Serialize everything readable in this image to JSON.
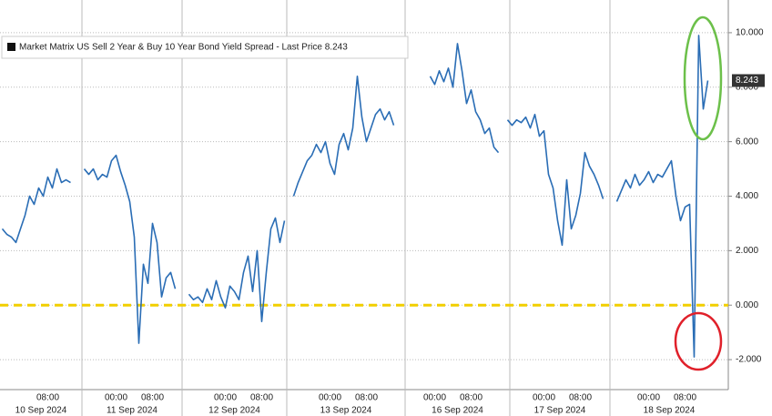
{
  "chart_data": {
    "type": "line",
    "series": [
      {
        "name": "Market Matrix US Sell 2 Year & Buy 10 Year Bond Yield Spread - Last Price 8.243",
        "color": "#2a6db5",
        "values": [
          2.8,
          2.6,
          2.5,
          2.3,
          2.8,
          3.3,
          4.0,
          3.7,
          4.3,
          4.0,
          4.7,
          4.3,
          5.0,
          4.5,
          4.6,
          4.5,
          null,
          null,
          5.0,
          4.8,
          5.0,
          4.6,
          4.8,
          4.7,
          5.3,
          5.5,
          4.9,
          4.4,
          3.8,
          2.5,
          -1.4,
          1.5,
          0.8,
          3.0,
          2.3,
          0.3,
          1.0,
          1.2,
          0.6,
          null,
          null,
          0.4,
          0.2,
          0.3,
          0.1,
          0.6,
          0.2,
          0.9,
          0.3,
          -0.1,
          0.7,
          0.5,
          0.2,
          1.2,
          1.8,
          0.5,
          2.0,
          -0.6,
          1.2,
          2.8,
          3.2,
          2.3,
          3.1,
          null,
          4.0,
          4.5,
          4.9,
          5.3,
          5.5,
          5.9,
          5.6,
          6.0,
          5.2,
          4.8,
          5.9,
          6.3,
          5.7,
          6.5,
          8.4,
          6.9,
          6.0,
          6.5,
          7.0,
          7.2,
          6.8,
          7.1,
          6.6,
          null,
          null,
          null,
          null,
          null,
          null,
          null,
          8.4,
          8.1,
          8.6,
          8.2,
          8.7,
          8.0,
          9.6,
          8.6,
          7.4,
          7.9,
          7.1,
          6.8,
          6.3,
          6.5,
          5.8,
          5.6,
          null,
          6.8,
          6.6,
          6.8,
          6.7,
          6.9,
          6.5,
          7.0,
          6.2,
          6.4,
          4.8,
          4.3,
          3.1,
          2.2,
          4.6,
          2.8,
          3.3,
          4.1,
          5.6,
          5.1,
          4.8,
          4.4,
          3.9,
          null,
          null,
          3.8,
          4.2,
          4.6,
          4.3,
          4.8,
          4.4,
          4.6,
          4.9,
          4.5,
          4.8,
          4.7,
          5.0,
          5.3,
          4.0,
          3.1,
          3.6,
          3.7,
          -1.9,
          9.9,
          7.2,
          8.243,
          null,
          null,
          null,
          null
        ]
      }
    ],
    "categories": [
      null,
      null,
      null,
      null,
      null,
      null,
      null,
      null,
      null,
      null,
      "08:00",
      null,
      null,
      null,
      null,
      null,
      null,
      null,
      null,
      null,
      null,
      null,
      null,
      null,
      null,
      "00:00",
      null,
      null,
      null,
      null,
      null,
      null,
      null,
      "08:00",
      null,
      null,
      null,
      null,
      null,
      null,
      null,
      null,
      null,
      null,
      null,
      null,
      null,
      null,
      null,
      "00:00",
      null,
      null,
      null,
      null,
      null,
      null,
      null,
      "08:00",
      null,
      null,
      null,
      null,
      null,
      null,
      null,
      null,
      null,
      null,
      null,
      null,
      null,
      null,
      "00:00",
      null,
      null,
      null,
      null,
      null,
      null,
      null,
      "08:00",
      null,
      null,
      null,
      null,
      null,
      null,
      null,
      null,
      null,
      null,
      null,
      null,
      null,
      null,
      "00:00",
      null,
      null,
      null,
      null,
      null,
      null,
      null,
      "08:00",
      null,
      null,
      null,
      null,
      null,
      null,
      null,
      null,
      null,
      null,
      null,
      null,
      null,
      null,
      null,
      "00:00",
      null,
      null,
      null,
      null,
      null,
      null,
      null,
      "08:00",
      null,
      null,
      null,
      null,
      null,
      null,
      null,
      null,
      null,
      null,
      null,
      null,
      null,
      null,
      "00:00",
      null,
      null,
      null,
      null,
      null,
      null,
      null,
      "08:00",
      null,
      null,
      null,
      null,
      null,
      null,
      null,
      null,
      null
    ],
    "dates": [
      "10 Sep 2024",
      "10 Sep 2024",
      "10 Sep 2024",
      "10 Sep 2024",
      "10 Sep 2024",
      "10 Sep 2024",
      "10 Sep 2024",
      "10 Sep 2024",
      "10 Sep 2024",
      "10 Sep 2024",
      "10 Sep 2024",
      "10 Sep 2024",
      "10 Sep 2024",
      "10 Sep 2024",
      "10 Sep 2024",
      "10 Sep 2024",
      "10 Sep 2024",
      "10 Sep 2024",
      "11 Sep 2024",
      "11 Sep 2024",
      "11 Sep 2024",
      "11 Sep 2024",
      "11 Sep 2024",
      "11 Sep 2024",
      "11 Sep 2024",
      "11 Sep 2024",
      "11 Sep 2024",
      "11 Sep 2024",
      "11 Sep 2024",
      "11 Sep 2024",
      "11 Sep 2024",
      "11 Sep 2024",
      "11 Sep 2024",
      "11 Sep 2024",
      "11 Sep 2024",
      "11 Sep 2024",
      "11 Sep 2024",
      "11 Sep 2024",
      "11 Sep 2024",
      "11 Sep 2024",
      "12 Sep 2024",
      "12 Sep 2024",
      "12 Sep 2024",
      "12 Sep 2024",
      "12 Sep 2024",
      "12 Sep 2024",
      "12 Sep 2024",
      "12 Sep 2024",
      "12 Sep 2024",
      "12 Sep 2024",
      "12 Sep 2024",
      "12 Sep 2024",
      "12 Sep 2024",
      "12 Sep 2024",
      "12 Sep 2024",
      "12 Sep 2024",
      "12 Sep 2024",
      "12 Sep 2024",
      "12 Sep 2024",
      "12 Sep 2024",
      "12 Sep 2024",
      "12 Sep 2024",
      "12 Sep 2024",
      "13 Sep 2024",
      "13 Sep 2024",
      "13 Sep 2024",
      "13 Sep 2024",
      "13 Sep 2024",
      "13 Sep 2024",
      "13 Sep 2024",
      "13 Sep 2024",
      "13 Sep 2024",
      "13 Sep 2024",
      "13 Sep 2024",
      "13 Sep 2024",
      "13 Sep 2024",
      "13 Sep 2024",
      "13 Sep 2024",
      "13 Sep 2024",
      "13 Sep 2024",
      "13 Sep 2024",
      "13 Sep 2024",
      "13 Sep 2024",
      "13 Sep 2024",
      "13 Sep 2024",
      "13 Sep 2024",
      "13 Sep 2024",
      "13 Sep 2024",
      "13 Sep 2024",
      "16 Sep 2024",
      "16 Sep 2024",
      "16 Sep 2024",
      "16 Sep 2024",
      "16 Sep 2024",
      "16 Sep 2024",
      "16 Sep 2024",
      "16 Sep 2024",
      "16 Sep 2024",
      "16 Sep 2024",
      "16 Sep 2024",
      "16 Sep 2024",
      "16 Sep 2024",
      "16 Sep 2024",
      "16 Sep 2024",
      "16 Sep 2024",
      "16 Sep 2024",
      "16 Sep 2024",
      "16 Sep 2024",
      "16 Sep 2024",
      "16 Sep 2024",
      "16 Sep 2024",
      "16 Sep 2024",
      "17 Sep 2024",
      "17 Sep 2024",
      "17 Sep 2024",
      "17 Sep 2024",
      "17 Sep 2024",
      "17 Sep 2024",
      "17 Sep 2024",
      "17 Sep 2024",
      "17 Sep 2024",
      "17 Sep 2024",
      "17 Sep 2024",
      "17 Sep 2024",
      "17 Sep 2024",
      "17 Sep 2024",
      "17 Sep 2024",
      "17 Sep 2024",
      "17 Sep 2024",
      "17 Sep 2024",
      "17 Sep 2024",
      "17 Sep 2024",
      "17 Sep 2024",
      "17 Sep 2024",
      "18 Sep 2024",
      "18 Sep 2024",
      "18 Sep 2024",
      "18 Sep 2024",
      "18 Sep 2024",
      "18 Sep 2024",
      "18 Sep 2024",
      "18 Sep 2024",
      "18 Sep 2024",
      "18 Sep 2024",
      "18 Sep 2024",
      "18 Sep 2024",
      "18 Sep 2024",
      "18 Sep 2024",
      "18 Sep 2024",
      "18 Sep 2024",
      "18 Sep 2024",
      "18 Sep 2024",
      "18 Sep 2024",
      "18 Sep 2024",
      "18 Sep 2024",
      "18 Sep 2024",
      "18 Sep 2024",
      "18 Sep 2024",
      "18 Sep 2024",
      "18 Sep 2024"
    ],
    "ylim": [
      -3.1,
      11.2
    ],
    "yticks": [
      {
        "value": -2,
        "label": "-2.000"
      },
      {
        "value": 0,
        "label": "0.000"
      },
      {
        "value": 2,
        "label": "2.000"
      },
      {
        "value": 4,
        "label": "4.000"
      },
      {
        "value": 6,
        "label": "6.000"
      },
      {
        "value": 8,
        "label": "8.000"
      },
      {
        "value": 10,
        "label": "10.000"
      }
    ],
    "grid": true,
    "last_price": 8.243,
    "reference_line": {
      "value": 0,
      "color": "#f2cf00"
    },
    "legend": "top-left"
  }
}
